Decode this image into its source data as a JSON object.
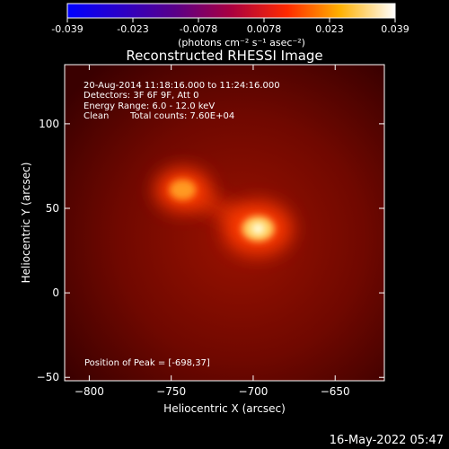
{
  "colorbar": {
    "ticks": [
      "-0.039",
      "-0.023",
      "-0.0078",
      "0.0078",
      "0.023",
      "0.039"
    ],
    "units": "(photons cm⁻² s⁻¹ asec⁻²)"
  },
  "chart_data": {
    "type": "heatmap",
    "title": "Reconstructed RHESSI Image",
    "xlabel": "Heliocentric X (arcsec)",
    "ylabel": "Heliocentric Y (arcsec)",
    "xlim": [
      -815,
      -620
    ],
    "ylim": [
      -52,
      135
    ],
    "xticks": [
      -800,
      -750,
      -700,
      -650
    ],
    "yticks": [
      -50,
      0,
      50,
      100
    ],
    "vmin": -0.039,
    "vmax": 0.039,
    "colormap": "red-temperature",
    "sources": [
      {
        "x": -697,
        "y": 38,
        "peak": 0.039
      },
      {
        "x": -743,
        "y": 61,
        "peak": 0.03
      }
    ],
    "annotations": [
      "20-Aug-2014 11:18:16.000 to 11:24:16.000",
      "Detectors: 3F 6F 9F, Att 0",
      "Energy Range: 6.0 - 12.0 keV",
      "Clean",
      "Total counts: 7.60E+04"
    ],
    "peak_label": "Position of Peak = [-698,37]"
  },
  "footer": {
    "timestamp": "16-May-2022 05:47"
  }
}
